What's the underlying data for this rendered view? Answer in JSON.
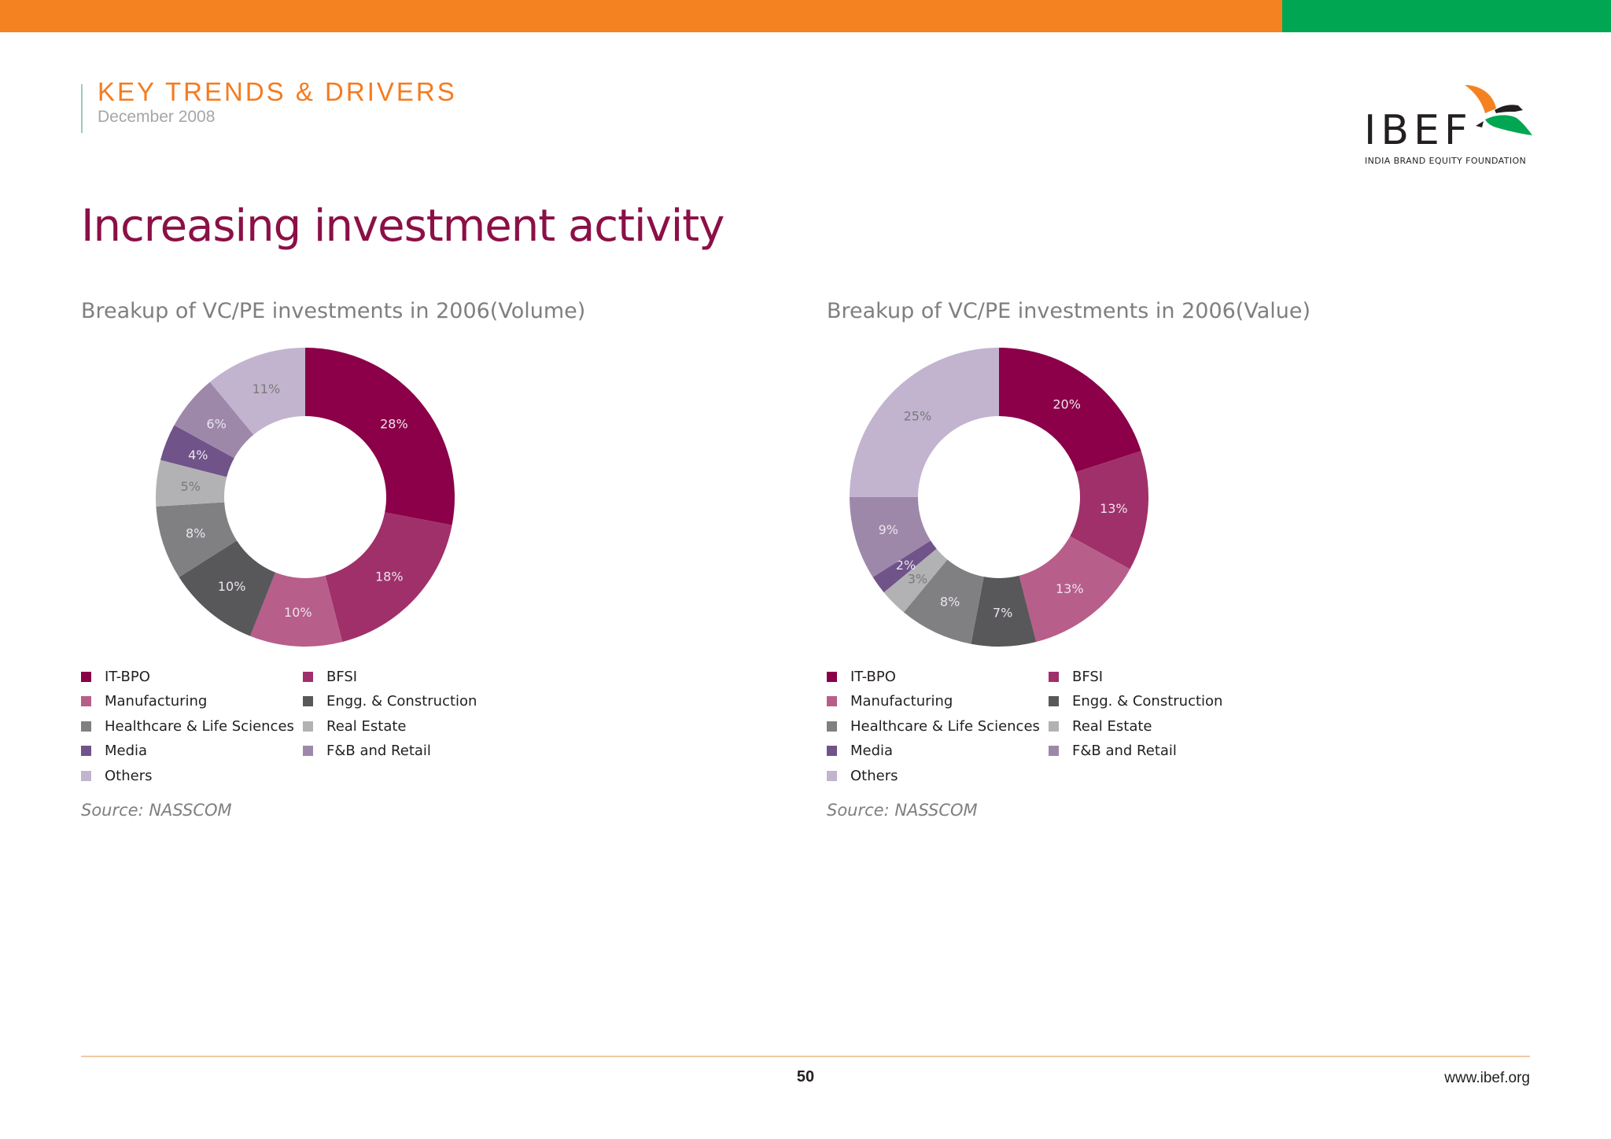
{
  "header": {
    "section_title": "KEY TRENDS & DRIVERS",
    "date": "December 2008",
    "logo_text": "IBEF",
    "logo_subtitle": "INDIA BRAND EQUITY FOUNDATION",
    "logo_icon": "bird-icon"
  },
  "page_title": "Increasing investment activity",
  "colors": {
    "it_bpo": "#8b0048",
    "bfsi": "#a0306a",
    "manufacturing": "#b85e8a",
    "engg": "#58585a",
    "healthcare": "#808082",
    "real_estate": "#b2b2b4",
    "media": "#6f5389",
    "fnb": "#9e88aa",
    "others": "#c2b4cf"
  },
  "legend": [
    {
      "label": "IT-BPO",
      "color": "#8b0048"
    },
    {
      "label": "BFSI",
      "color": "#a0306a"
    },
    {
      "label": "Manufacturing",
      "color": "#b85e8a"
    },
    {
      "label": "Engg. & Construction",
      "color": "#58585a"
    },
    {
      "label": "Healthcare & Life Sciences",
      "color": "#808082"
    },
    {
      "label": "Real Estate",
      "color": "#b2b2b4"
    },
    {
      "label": "Media",
      "color": "#6f5389"
    },
    {
      "label": "F&B and Retail",
      "color": "#9e88aa"
    },
    {
      "label": "Others",
      "color": "#c2b4cf"
    }
  ],
  "chart_data": [
    {
      "type": "pie",
      "title": "Breakup of VC/PE investments in 2006(Volume)",
      "source": "Source: NASSCOM",
      "slices": [
        {
          "label": "IT-BPO",
          "value": 28,
          "text": "28%",
          "color": "#8b0048"
        },
        {
          "label": "BFSI",
          "value": 18,
          "text": "18%",
          "color": "#a0306a"
        },
        {
          "label": "Manufacturing",
          "value": 10,
          "text": "10%",
          "color": "#b85e8a"
        },
        {
          "label": "Engg. & Construction",
          "value": 10,
          "text": "10%",
          "color": "#58585a"
        },
        {
          "label": "Healthcare & Life Sciences",
          "value": 8,
          "text": "8%",
          "color": "#808082"
        },
        {
          "label": "Real Estate",
          "value": 5,
          "text": "5%",
          "color": "#b2b2b4"
        },
        {
          "label": "Media",
          "value": 4,
          "text": "4%",
          "color": "#6f5389"
        },
        {
          "label": "F&B and Retail",
          "value": 6,
          "text": "6%",
          "color": "#9e88aa"
        },
        {
          "label": "Others",
          "value": 11,
          "text": "11%",
          "color": "#c2b4cf"
        }
      ]
    },
    {
      "type": "pie",
      "title": "Breakup of VC/PE investments in 2006(Value)",
      "source": "Source: NASSCOM",
      "slices": [
        {
          "label": "IT-BPO",
          "value": 20,
          "text": "20%",
          "color": "#8b0048"
        },
        {
          "label": "BFSI",
          "value": 13,
          "text": "13%",
          "color": "#a0306a"
        },
        {
          "label": "Manufacturing",
          "value": 13,
          "text": "13%",
          "color": "#b85e8a"
        },
        {
          "label": "Engg. & Construction",
          "value": 7,
          "text": "7%",
          "color": "#58585a"
        },
        {
          "label": "Healthcare & Life Sciences",
          "value": 8,
          "text": "8%",
          "color": "#808082"
        },
        {
          "label": "Real Estate",
          "value": 3,
          "text": "3%",
          "color": "#b2b2b4"
        },
        {
          "label": "Media",
          "value": 2,
          "text": "2%",
          "color": "#6f5389"
        },
        {
          "label": "F&B and Retail",
          "value": 9,
          "text": "9%",
          "color": "#9e88aa"
        },
        {
          "label": "Others",
          "value": 25,
          "text": "25%",
          "color": "#c2b4cf"
        }
      ]
    }
  ],
  "footer": {
    "page_number": "50",
    "website": "www.ibef.org"
  }
}
